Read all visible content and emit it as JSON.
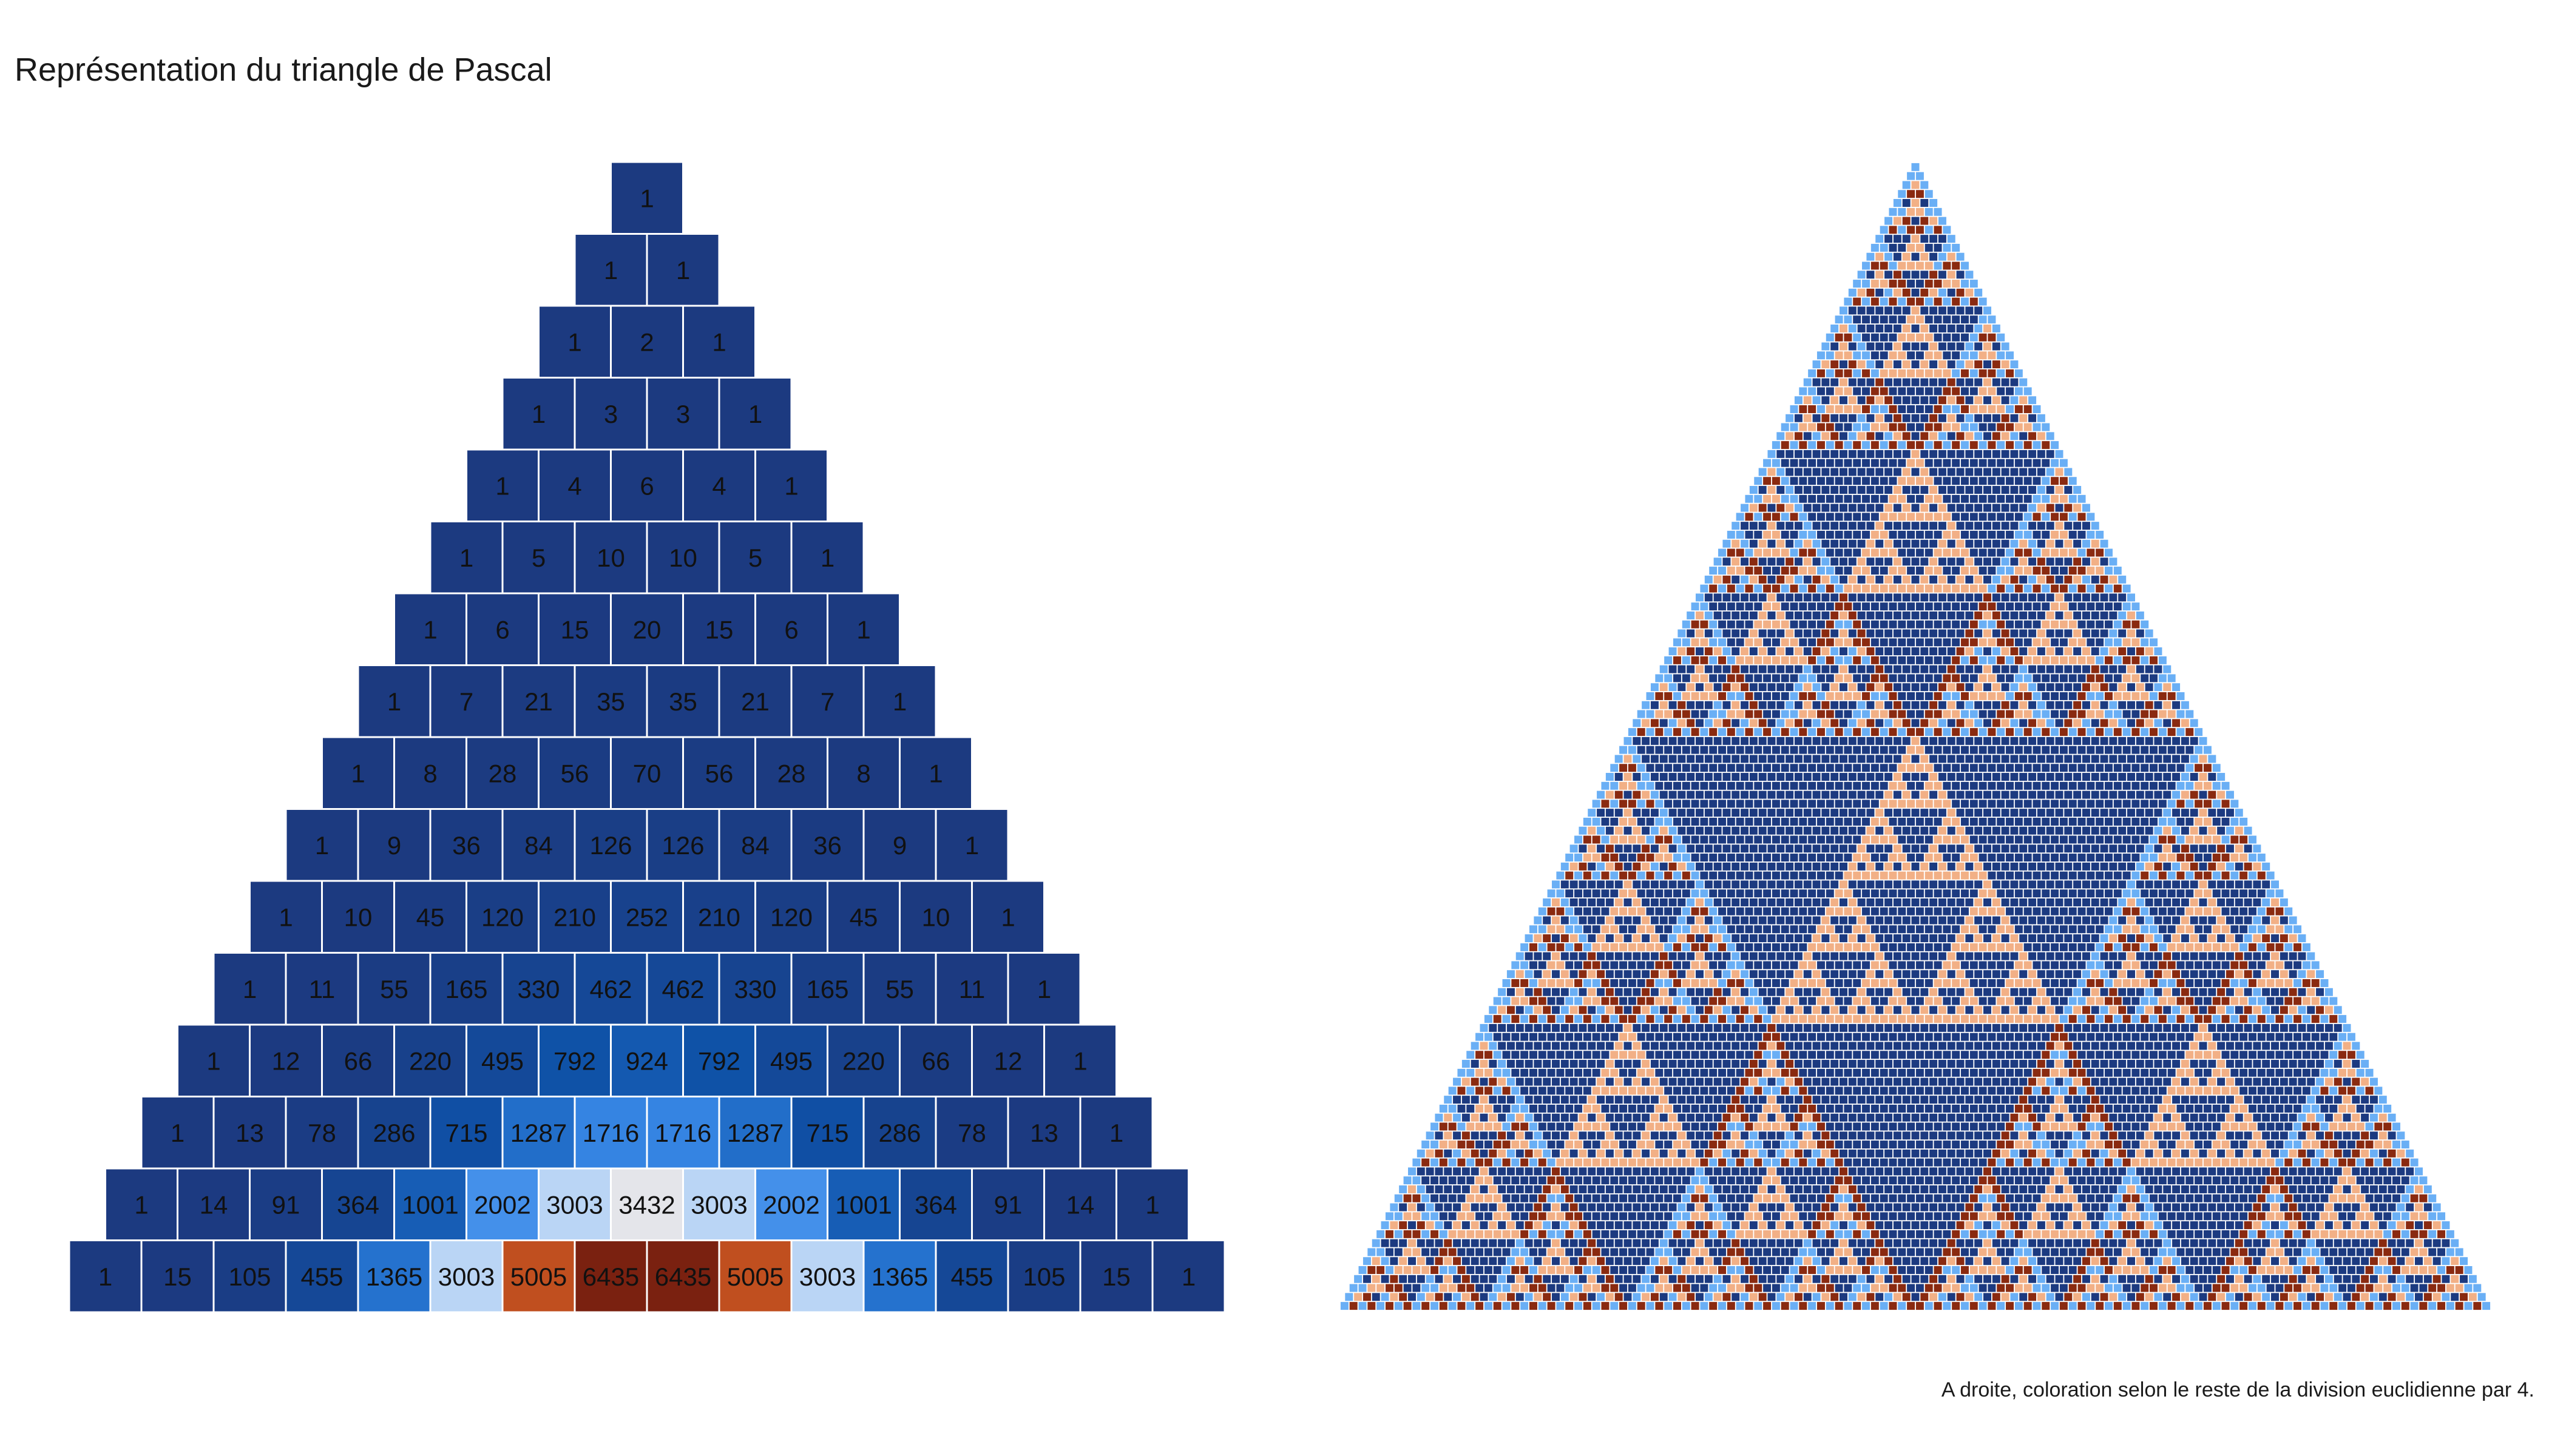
{
  "title": "Représentation du triangle de Pascal",
  "caption": "A droite, coloration selon le reste de la division euclidienne par 4.",
  "chart_data": [
    {
      "type": "heatmap",
      "name": "left",
      "rows": [
        [
          1
        ],
        [
          1,
          1
        ],
        [
          1,
          2,
          1
        ],
        [
          1,
          3,
          3,
          1
        ],
        [
          1,
          4,
          6,
          4,
          1
        ],
        [
          1,
          5,
          10,
          10,
          5,
          1
        ],
        [
          1,
          6,
          15,
          20,
          15,
          6,
          1
        ],
        [
          1,
          7,
          21,
          35,
          35,
          21,
          7,
          1
        ],
        [
          1,
          8,
          28,
          56,
          70,
          56,
          28,
          8,
          1
        ],
        [
          1,
          9,
          36,
          84,
          126,
          126,
          84,
          36,
          9,
          1
        ],
        [
          1,
          10,
          45,
          120,
          210,
          252,
          210,
          120,
          45,
          10,
          1
        ],
        [
          1,
          11,
          55,
          165,
          330,
          462,
          462,
          330,
          165,
          55,
          11,
          1
        ],
        [
          1,
          12,
          66,
          220,
          495,
          792,
          924,
          792,
          495,
          220,
          66,
          12,
          1
        ],
        [
          1,
          13,
          78,
          286,
          715,
          1287,
          1716,
          1716,
          1287,
          715,
          286,
          78,
          13,
          1
        ],
        [
          1,
          14,
          91,
          364,
          1001,
          2002,
          3003,
          3432,
          3003,
          2002,
          1001,
          364,
          91,
          14,
          1
        ],
        [
          1,
          15,
          105,
          455,
          1365,
          3003,
          5005,
          6435,
          6435,
          5005,
          3003,
          1365,
          455,
          105,
          15,
          1
        ]
      ],
      "color_scale": {
        "max_value": 6435,
        "stops": [
          "#1c3a80",
          "#0f52a8",
          "#2f80df",
          "#5aa0f5",
          "#dde8f5",
          "#f8dccb",
          "#cf5a23",
          "#8a2810",
          "#7a2110"
        ]
      }
    },
    {
      "type": "heatmap",
      "name": "right",
      "row_count": 128,
      "modulus": 4,
      "residue_colors": {
        "0": "#1c3a80",
        "1": "#6aaff5",
        "2": "#f2b086",
        "3": "#8a2a10"
      }
    }
  ]
}
